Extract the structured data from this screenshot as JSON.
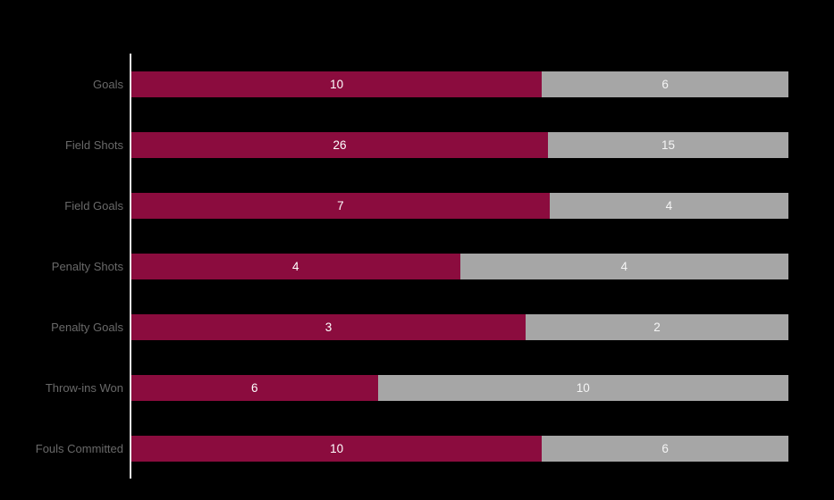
{
  "colors": {
    "background": "#000000",
    "series_1": "#8B0C3E",
    "series_2": "#A6A6A6",
    "category_label": "#696969",
    "value_label_on_series_1": "#FFFFFF",
    "value_label_on_series_2": "#F5F5F5",
    "axis_line": "#E8E8E8"
  },
  "chart_data": {
    "type": "bar",
    "subtype": "stacked-100-percent",
    "orientation": "horizontal",
    "title": "",
    "xlabel": "",
    "ylabel": "",
    "legend": "none",
    "grid": false,
    "categories": [
      "Goals",
      "Field Shots",
      "Field Goals",
      "Penalty Shots",
      "Penalty Goals",
      "Throw-ins Won",
      "Fouls Committed"
    ],
    "series": [
      {
        "name": "series_1",
        "color": "#8B0C3E",
        "values": [
          10,
          26,
          7,
          4,
          3,
          6,
          10
        ]
      },
      {
        "name": "series_2",
        "color": "#A6A6A6",
        "values": [
          6,
          15,
          4,
          4,
          2,
          10,
          6
        ]
      }
    ],
    "data_labels": {
      "series_1": [
        "10",
        "26",
        "7",
        "4",
        "3",
        "6",
        "10"
      ],
      "series_2": [
        "6",
        "15",
        "4",
        "4",
        "2",
        "10",
        "6"
      ]
    }
  }
}
